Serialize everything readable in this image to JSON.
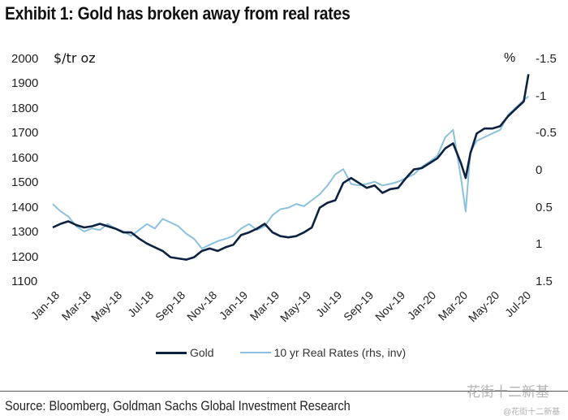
{
  "chart_data": {
    "type": "line",
    "title": "Exhibit 1: Gold has broken away from real rates",
    "ylabel_left": "$/tr oz",
    "ylabel_right": "%",
    "ylim_left": [
      1100,
      2000
    ],
    "ylim_right": [
      1.5,
      -1.5
    ],
    "right_axis_inverted": true,
    "yticks_left": [
      "2000",
      "1900",
      "1800",
      "1700",
      "1600",
      "1500",
      "1400",
      "1300",
      "1200",
      "1100"
    ],
    "yticks_right": [
      "-1.5",
      "-1",
      "-0.5",
      "0",
      "0.5",
      "1",
      "1.5"
    ],
    "xticks": [
      "Jan-18",
      "Mar-18",
      "May-18",
      "Jul-18",
      "Sep-18",
      "Nov-18",
      "Jan-19",
      "Mar-19",
      "May-19",
      "Jul-19",
      "Sep-19",
      "Nov-19",
      "Jan-20",
      "Mar-20",
      "May-20",
      "Jul-20"
    ],
    "x_months_from_jan18": [
      0,
      0.5,
      1,
      1.5,
      2,
      2.5,
      3,
      3.5,
      4,
      4.5,
      5,
      5.5,
      6,
      6.5,
      7,
      7.5,
      8,
      8.5,
      9,
      9.5,
      10,
      10.5,
      11,
      11.5,
      12,
      12.5,
      13,
      13.5,
      14,
      14.5,
      15,
      15.5,
      16,
      16.5,
      17,
      17.5,
      18,
      18.5,
      19,
      19.5,
      20,
      20.5,
      21,
      21.5,
      22,
      22.5,
      23,
      23.5,
      24,
      24.5,
      25,
      25.5,
      26,
      26.3,
      26.6,
      27,
      27.5,
      28,
      28.5,
      29,
      29.5,
      30,
      30.3
    ],
    "grid": false,
    "legend_position": "bottom",
    "series": [
      {
        "name": "Gold",
        "axis": "left",
        "color": "#0d2240",
        "values": [
          1320,
          1335,
          1345,
          1330,
          1320,
          1325,
          1335,
          1325,
          1315,
          1300,
          1300,
          1275,
          1255,
          1240,
          1225,
          1200,
          1195,
          1190,
          1200,
          1225,
          1235,
          1225,
          1240,
          1250,
          1290,
          1300,
          1315,
          1335,
          1300,
          1285,
          1280,
          1285,
          1300,
          1320,
          1400,
          1420,
          1430,
          1500,
          1520,
          1500,
          1480,
          1490,
          1460,
          1475,
          1480,
          1520,
          1555,
          1560,
          1580,
          1600,
          1640,
          1660,
          1580,
          1520,
          1620,
          1700,
          1720,
          1720,
          1730,
          1770,
          1800,
          1830,
          1940
        ]
      },
      {
        "name": "10 yr Real Rates (rhs, inv)",
        "axis": "right",
        "color": "#8cc1dd",
        "values": [
          0.45,
          0.55,
          0.62,
          0.75,
          0.82,
          0.78,
          0.8,
          0.72,
          0.78,
          0.82,
          0.88,
          0.8,
          0.72,
          0.78,
          0.65,
          0.7,
          0.75,
          0.85,
          0.92,
          1.05,
          1.0,
          0.95,
          0.92,
          0.88,
          0.78,
          0.72,
          0.8,
          0.75,
          0.6,
          0.52,
          0.5,
          0.45,
          0.48,
          0.4,
          0.32,
          0.2,
          0.05,
          -0.02,
          0.18,
          0.2,
          0.18,
          0.15,
          0.2,
          0.18,
          0.15,
          0.1,
          0.05,
          -0.05,
          -0.12,
          -0.2,
          -0.45,
          -0.55,
          0.1,
          0.55,
          -0.25,
          -0.4,
          -0.45,
          -0.5,
          -0.55,
          -0.75,
          -0.85,
          -0.95,
          -1.0
        ]
      }
    ]
  },
  "legend": {
    "gold_label": "Gold",
    "rates_label": "10 yr Real Rates (rhs, inv)"
  },
  "footer": {
    "source": "Source: Bloomberg, Goldman Sachs Global Investment Research",
    "watermark": "花街十二新基",
    "watermark_sub": "@花街十二新基"
  }
}
